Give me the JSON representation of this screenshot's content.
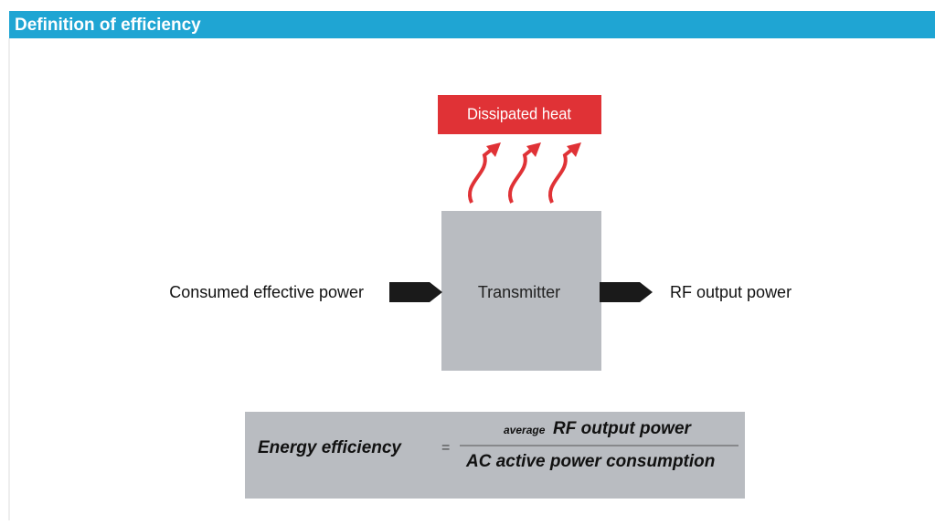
{
  "header": {
    "title": "Definition of efficiency"
  },
  "nodes": [
    {
      "label": "Dissipated heat"
    },
    {
      "label": "Consumed effective power"
    },
    {
      "label": "Transmitter"
    },
    {
      "label": "RF output power"
    }
  ],
  "formula": {
    "left": "Energy efficiency",
    "equals": "=",
    "numerator_prefix": "average",
    "numerator": "RF output power",
    "denominator": "AC active power consumption"
  }
}
